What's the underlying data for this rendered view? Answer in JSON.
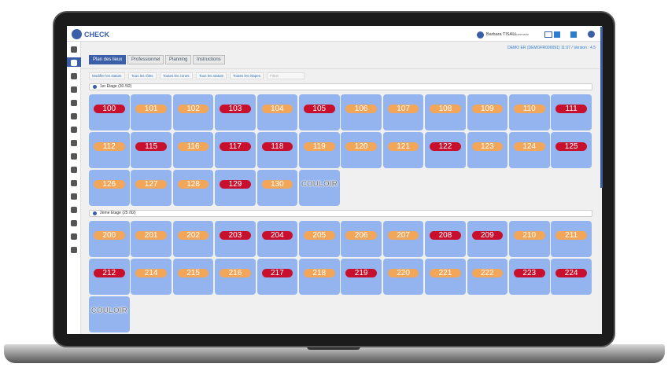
{
  "header": {
    "logo": "CHECK",
    "user": "Barbara TISALI",
    "role": "Gouvernante",
    "version": "DEMO ER (DEMOFR000091) 11:07 / Version : 4.5"
  },
  "tabs": [
    "Plan des lieux",
    "Professionnel",
    "Planning",
    "Instructions"
  ],
  "filters": [
    "Modifier les statuts",
    "Tous les rôles",
    "Toutes les zones",
    "Tous les statuts",
    "Toutes les étapes",
    "Filtrer"
  ],
  "floors": [
    {
      "title": "1er Etage (30 /92)",
      "rooms": [
        {
          "label": "100",
          "color": "#c8102e"
        },
        {
          "label": "101",
          "color": "#f2a65a"
        },
        {
          "label": "102",
          "color": "#f2a65a"
        },
        {
          "label": "103",
          "color": "#c8102e"
        },
        {
          "label": "104",
          "color": "#f2a65a"
        },
        {
          "label": "105",
          "color": "#c8102e"
        },
        {
          "label": "106",
          "color": "#f2a65a"
        },
        {
          "label": "107",
          "color": "#f2a65a"
        },
        {
          "label": "108",
          "color": "#f2a65a"
        },
        {
          "label": "109",
          "color": "#f2a65a"
        },
        {
          "label": "110",
          "color": "#f2a65a"
        },
        {
          "label": "111",
          "color": "#c8102e"
        },
        {
          "label": "112",
          "color": "#f2a65a"
        },
        {
          "label": "115",
          "color": "#c8102e"
        },
        {
          "label": "116",
          "color": "#f2a65a"
        },
        {
          "label": "117",
          "color": "#c8102e"
        },
        {
          "label": "118",
          "color": "#c8102e"
        },
        {
          "label": "119",
          "color": "#f2a65a"
        },
        {
          "label": "120",
          "color": "#f2a65a"
        },
        {
          "label": "121",
          "color": "#f2a65a"
        },
        {
          "label": "122",
          "color": "#c8102e"
        },
        {
          "label": "123",
          "color": "#f2a65a"
        },
        {
          "label": "124",
          "color": "#f2a65a"
        },
        {
          "label": "125",
          "color": "#c8102e"
        },
        {
          "label": "126",
          "color": "#f2a65a"
        },
        {
          "label": "127",
          "color": "#f2a65a"
        },
        {
          "label": "128",
          "color": "#f2a65a"
        },
        {
          "label": "129",
          "color": "#c8102e"
        },
        {
          "label": "130",
          "color": "#f2a65a"
        },
        {
          "label": "COULOIR"
        }
      ]
    },
    {
      "title": "2eme Etage (25 /92)",
      "rooms": [
        {
          "label": "200",
          "color": "#f2a65a"
        },
        {
          "label": "201",
          "color": "#f2a65a"
        },
        {
          "label": "202",
          "color": "#f2a65a"
        },
        {
          "label": "203",
          "color": "#c8102e"
        },
        {
          "label": "204",
          "color": "#c8102e"
        },
        {
          "label": "205",
          "color": "#f2a65a"
        },
        {
          "label": "206",
          "color": "#f2a65a"
        },
        {
          "label": "207",
          "color": "#f2a65a"
        },
        {
          "label": "208",
          "color": "#c8102e"
        },
        {
          "label": "209",
          "color": "#c8102e"
        },
        {
          "label": "210",
          "color": "#f2a65a"
        },
        {
          "label": "211",
          "color": "#f2a65a"
        },
        {
          "label": "212",
          "color": "#c8102e"
        },
        {
          "label": "214",
          "color": "#f2a65a"
        },
        {
          "label": "215",
          "color": "#f2a65a"
        },
        {
          "label": "216",
          "color": "#f2a65a"
        },
        {
          "label": "217",
          "color": "#c8102e"
        },
        {
          "label": "218",
          "color": "#f2a65a"
        },
        {
          "label": "219",
          "color": "#c8102e"
        },
        {
          "label": "220",
          "color": "#f2a65a"
        },
        {
          "label": "221",
          "color": "#f2a65a"
        },
        {
          "label": "222",
          "color": "#f2a65a"
        },
        {
          "label": "223",
          "color": "#c8102e"
        },
        {
          "label": "224",
          "color": "#c8102e"
        },
        {
          "label": "COULOIR"
        }
      ]
    }
  ]
}
